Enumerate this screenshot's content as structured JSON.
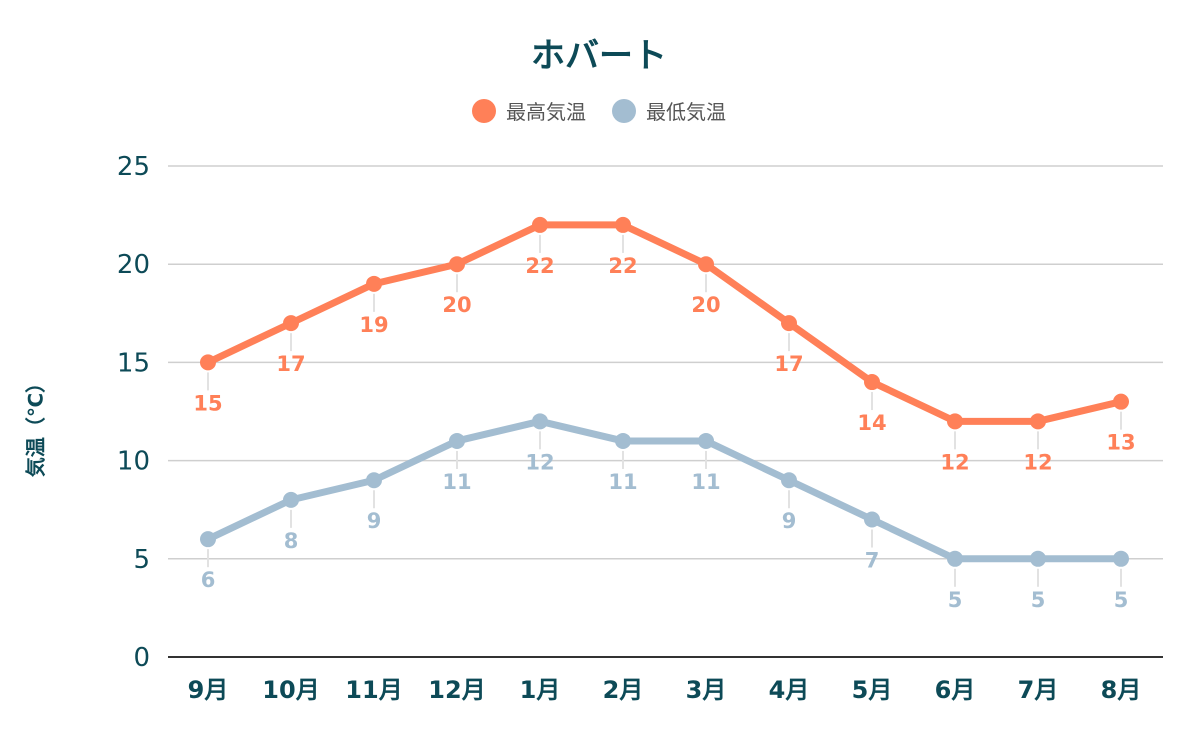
{
  "chart_data": {
    "type": "line",
    "title": "ホバート",
    "ylabel": "気温（℃）",
    "xlabel": "",
    "categories": [
      "9月",
      "10月",
      "11月",
      "12月",
      "1月",
      "2月",
      "3月",
      "4月",
      "5月",
      "6月",
      "7月",
      "8月"
    ],
    "series": [
      {
        "name": "最高気温",
        "color": "#ff8058",
        "values": [
          15,
          17,
          19,
          20,
          22,
          22,
          20,
          17,
          14,
          12,
          12,
          13
        ]
      },
      {
        "name": "最低気温",
        "color": "#a3bdd1",
        "values": [
          6,
          8,
          9,
          11,
          12,
          11,
          11,
          9,
          7,
          5,
          5,
          5
        ]
      }
    ],
    "ylim": [
      0,
      25
    ],
    "yticks": [
      0,
      5,
      10,
      15,
      20,
      25
    ],
    "grid": true,
    "legend_position": "top-center"
  }
}
